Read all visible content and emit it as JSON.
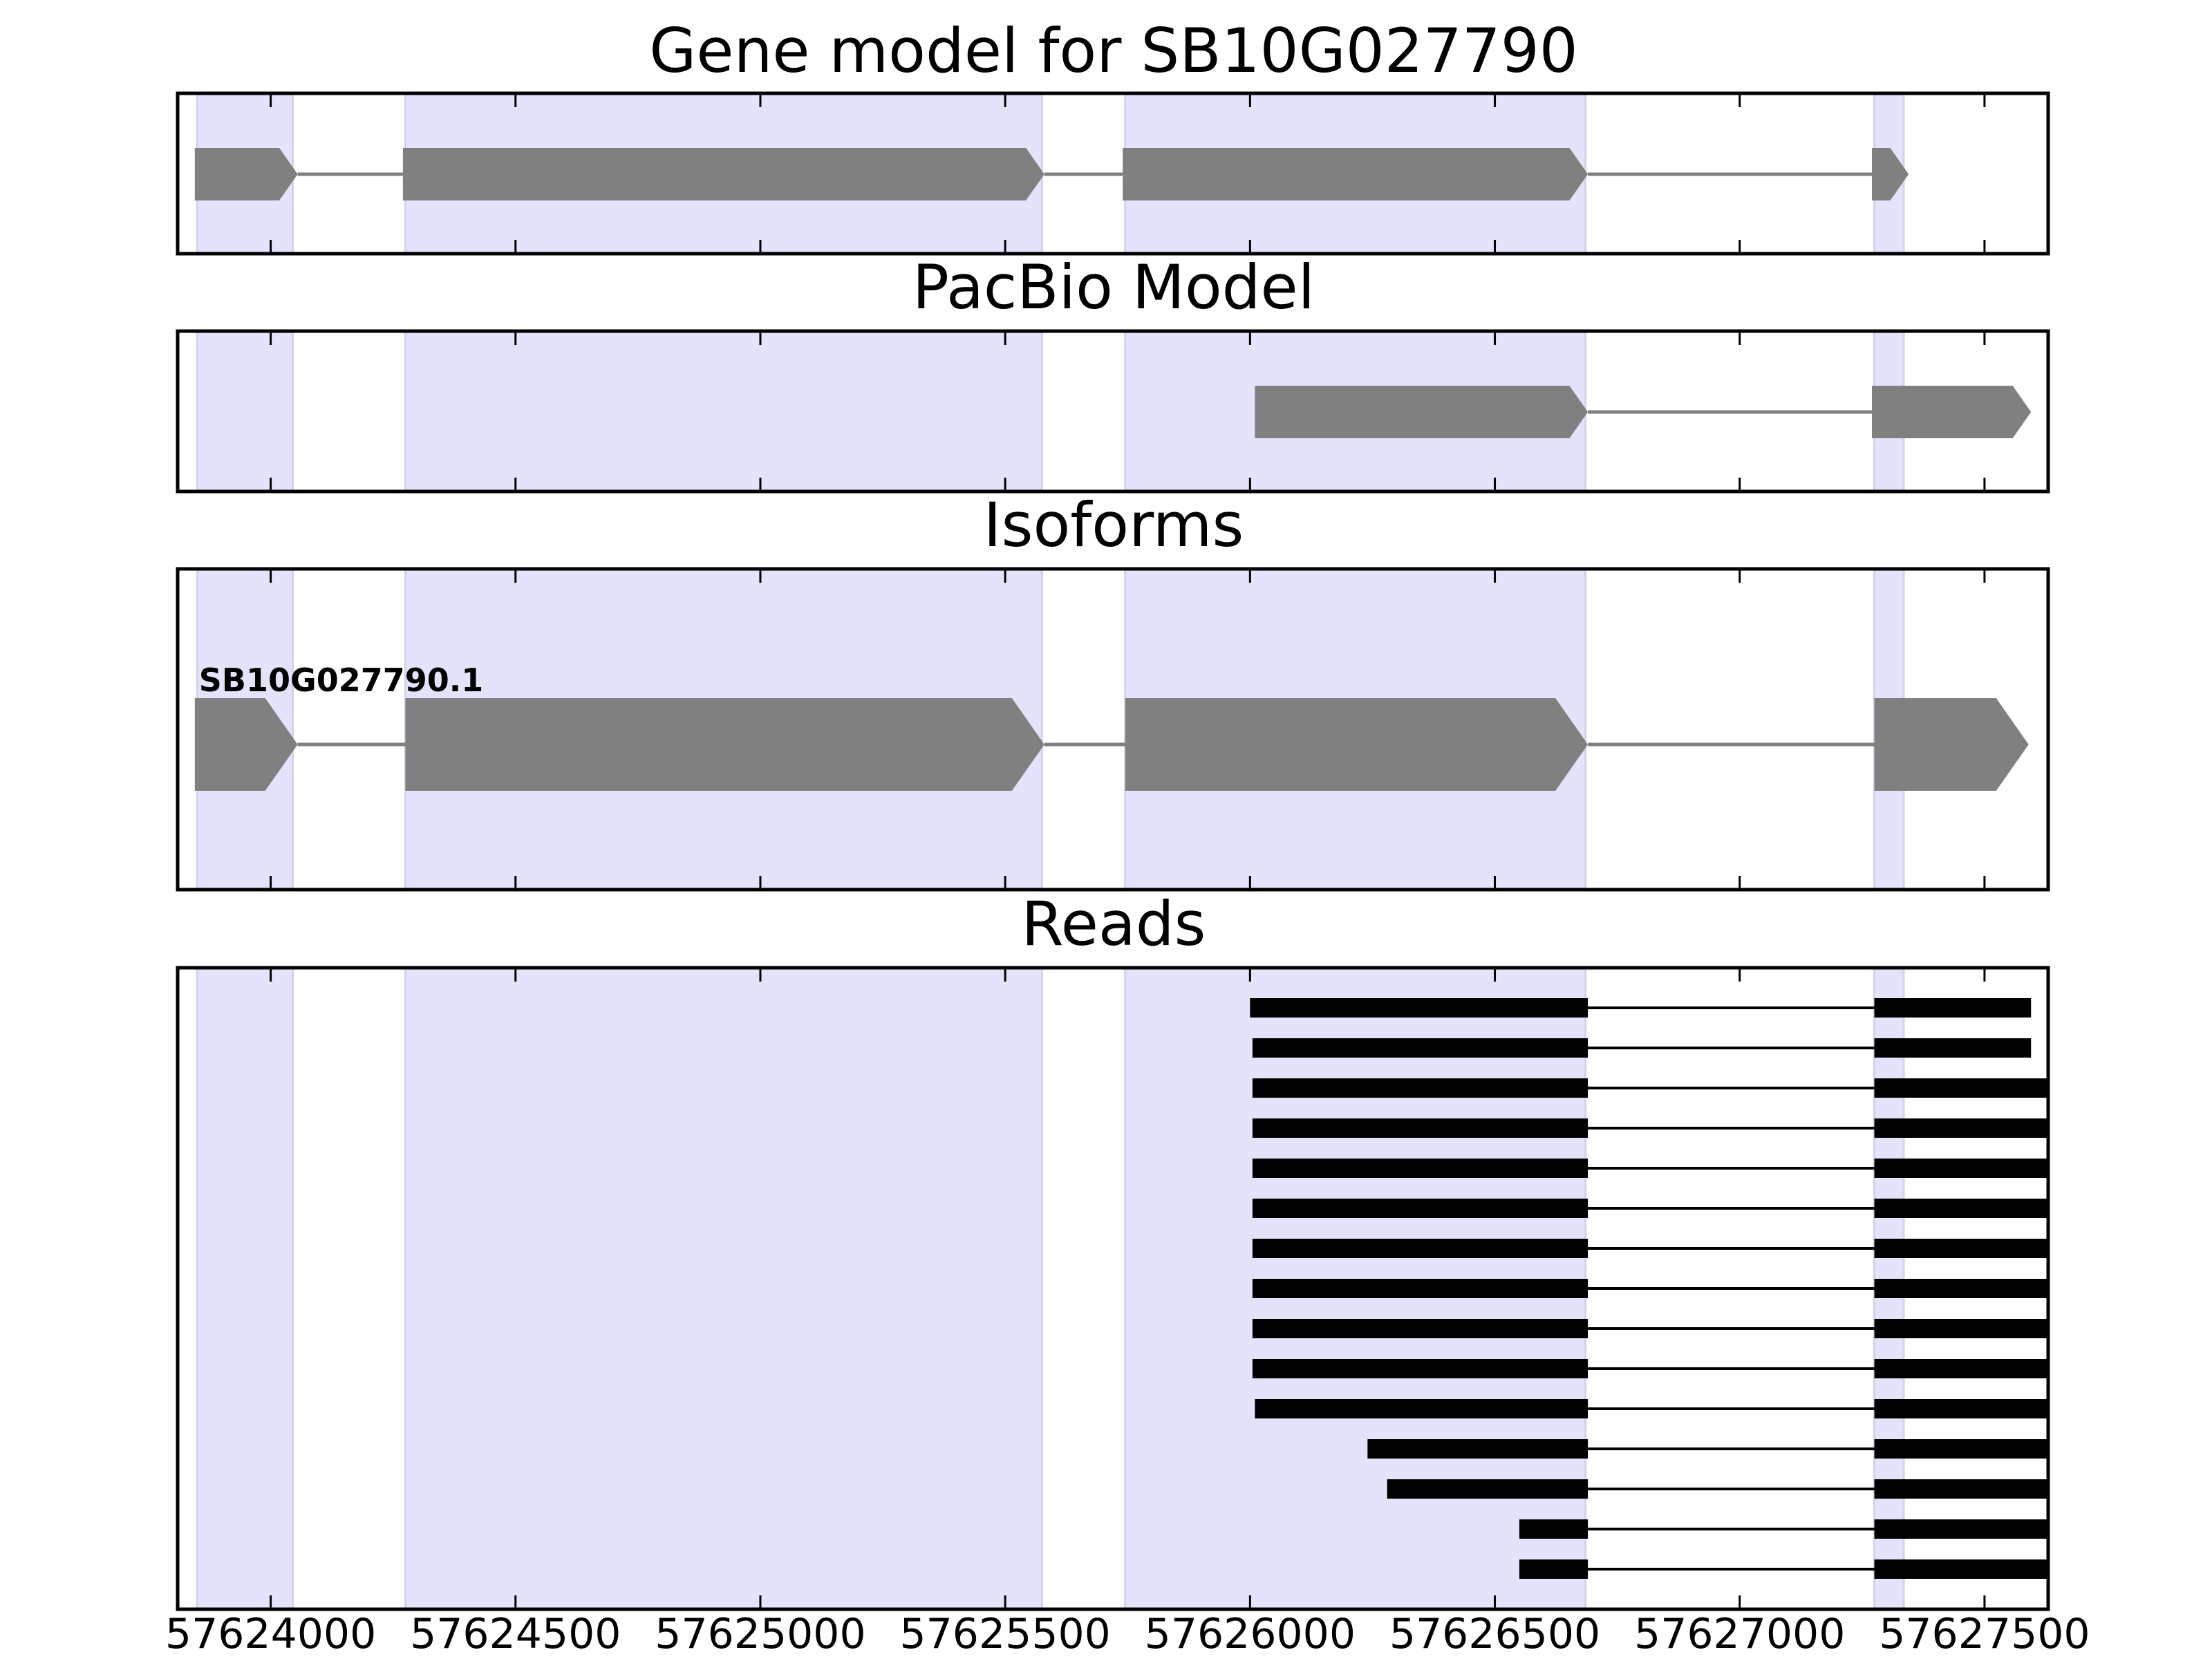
{
  "chart_data": {
    "type": "gene-structure",
    "xlim": [
      57623810,
      57627630
    ],
    "xticks": [
      57624000,
      57624500,
      57625000,
      57625500,
      57626000,
      57626500,
      57627000,
      57627500
    ],
    "xtick_labels": [
      "57624000",
      "57624500",
      "57625000",
      "57625500",
      "57626000",
      "57626500",
      "57627000",
      "57627500"
    ],
    "highlight_color": "#e3e3fc",
    "highlight_regions": [
      [
        57623850,
        57624045
      ],
      [
        57624275,
        57625575
      ],
      [
        57625745,
        57626685
      ],
      [
        57627275,
        57627335
      ]
    ],
    "panels": [
      {
        "id": "gene-model",
        "title": "Gene model for SB10G027790",
        "feature_color": "#808080",
        "tracks": [
          {
            "label": "",
            "exons": [
              [
                57623845,
                57624055
              ],
              [
                57624270,
                57625580
              ],
              [
                57625740,
                57626690
              ],
              [
                57627270,
                57627345
              ]
            ]
          }
        ]
      },
      {
        "id": "pacbio-model",
        "title": "PacBio Model",
        "feature_color": "#808080",
        "tracks": [
          {
            "label": "",
            "exons": [
              [
                57626010,
                57626690
              ],
              [
                57627270,
                57627595
              ]
            ]
          }
        ]
      },
      {
        "id": "isoforms",
        "title": "Isoforms",
        "feature_color": "#808080",
        "tracks": [
          {
            "label": "SB10G027790.1",
            "exons": [
              [
                57623845,
                57624055
              ],
              [
                57624275,
                57625580
              ],
              [
                57625745,
                57626690
              ],
              [
                57627275,
                57627590
              ]
            ]
          }
        ]
      },
      {
        "id": "reads",
        "title": "Reads",
        "feature_color": "#000000",
        "tracks": [
          {
            "exons": [
              [
                57626000,
                57626690
              ],
              [
                57627275,
                57627595
              ]
            ]
          },
          {
            "exons": [
              [
                57626005,
                57626690
              ],
              [
                57627275,
                57627595
              ]
            ]
          },
          {
            "exons": [
              [
                57626005,
                57626690
              ],
              [
                57627275,
                57627630
              ]
            ]
          },
          {
            "exons": [
              [
                57626005,
                57626690
              ],
              [
                57627275,
                57627630
              ]
            ]
          },
          {
            "exons": [
              [
                57626005,
                57626690
              ],
              [
                57627275,
                57627630
              ]
            ]
          },
          {
            "exons": [
              [
                57626005,
                57626690
              ],
              [
                57627275,
                57627630
              ]
            ]
          },
          {
            "exons": [
              [
                57626005,
                57626690
              ],
              [
                57627275,
                57627630
              ]
            ]
          },
          {
            "exons": [
              [
                57626005,
                57626690
              ],
              [
                57627275,
                57627630
              ]
            ]
          },
          {
            "exons": [
              [
                57626005,
                57626690
              ],
              [
                57627275,
                57627630
              ]
            ]
          },
          {
            "exons": [
              [
                57626005,
                57626690
              ],
              [
                57627275,
                57627630
              ]
            ]
          },
          {
            "exons": [
              [
                57626010,
                57626690
              ],
              [
                57627275,
                57627630
              ]
            ]
          },
          {
            "exons": [
              [
                57626240,
                57626690
              ],
              [
                57627275,
                57627630
              ]
            ]
          },
          {
            "exons": [
              [
                57626280,
                57626690
              ],
              [
                57627275,
                57627630
              ]
            ]
          },
          {
            "exons": [
              [
                57626550,
                57626690
              ],
              [
                57627275,
                57627630
              ]
            ]
          },
          {
            "exons": [
              [
                57626550,
                57626690
              ],
              [
                57627275,
                57627630
              ]
            ]
          }
        ]
      }
    ]
  }
}
